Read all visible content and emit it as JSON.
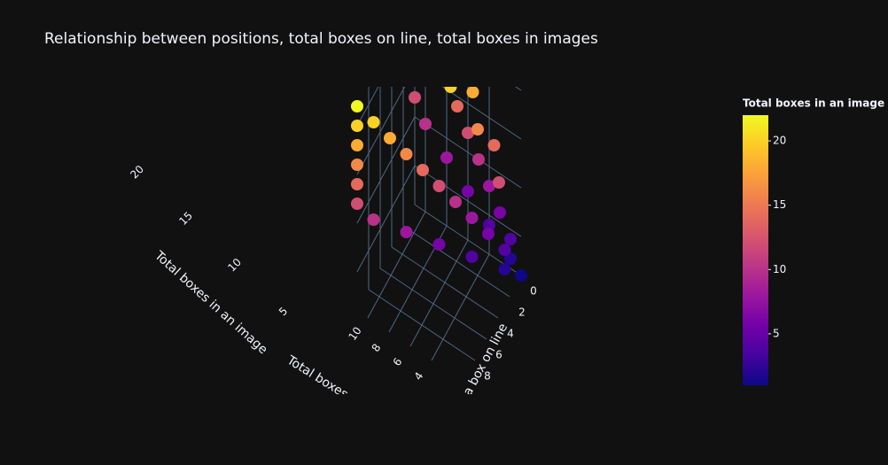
{
  "chart_data": {
    "type": "scatter3d",
    "title": "Relationship between positions, total boxes on line, total boxes in images",
    "x_label": "Position of a box on line",
    "y_label": "Total boxes on line",
    "z_label": "Total boxes in an image",
    "x": [
      0,
      0,
      1,
      0,
      1,
      0,
      3,
      0,
      2,
      0,
      5,
      0,
      3,
      0,
      7,
      0,
      4,
      0,
      9,
      0,
      5,
      0,
      10,
      2,
      0,
      6,
      0,
      10,
      1,
      0,
      7,
      0,
      10,
      2,
      0,
      8,
      0,
      10,
      1,
      0,
      9,
      0,
      10,
      3,
      0,
      10,
      5,
      2
    ],
    "y": [
      1,
      2,
      2,
      2,
      2,
      4,
      4,
      3,
      3,
      6,
      6,
      4,
      4,
      8,
      8,
      5,
      5,
      10,
      10,
      6,
      6,
      11,
      11,
      2,
      7,
      7,
      11,
      11,
      3,
      8,
      8,
      11,
      11,
      4,
      9,
      9,
      11,
      11,
      5,
      10,
      10,
      11,
      11,
      6,
      11,
      11,
      8,
      4
    ],
    "z": [
      1,
      2,
      2,
      4,
      4,
      4,
      4,
      6,
      6,
      6,
      6,
      8,
      8,
      8,
      8,
      10,
      10,
      10,
      10,
      12,
      12,
      12,
      12,
      12,
      14,
      14,
      14,
      14,
      14,
      16,
      16,
      16,
      16,
      16,
      18,
      18,
      18,
      18,
      18,
      20,
      20,
      20,
      20,
      20,
      22,
      22,
      22,
      22
    ],
    "xlim": [
      0,
      10
    ],
    "ylim": [
      1,
      11
    ],
    "zlim": [
      1,
      22
    ],
    "xticks": [
      0,
      2,
      4,
      6,
      8
    ],
    "yticks": [
      4,
      6,
      8,
      10
    ],
    "zticks": [
      5,
      10,
      15,
      20
    ],
    "colorbar_title": "Total boxes in an image",
    "colorbar_ticks": [
      5,
      10,
      15,
      20
    ],
    "cmin": 1,
    "cmax": 22,
    "colorscale": [
      "#0d0887",
      "#46039f",
      "#7201a8",
      "#9c179e",
      "#bd3786",
      "#d8576b",
      "#ed7953",
      "#fb9f3a",
      "#fdca26",
      "#f0f921"
    ],
    "grid_color": "#506784"
  }
}
